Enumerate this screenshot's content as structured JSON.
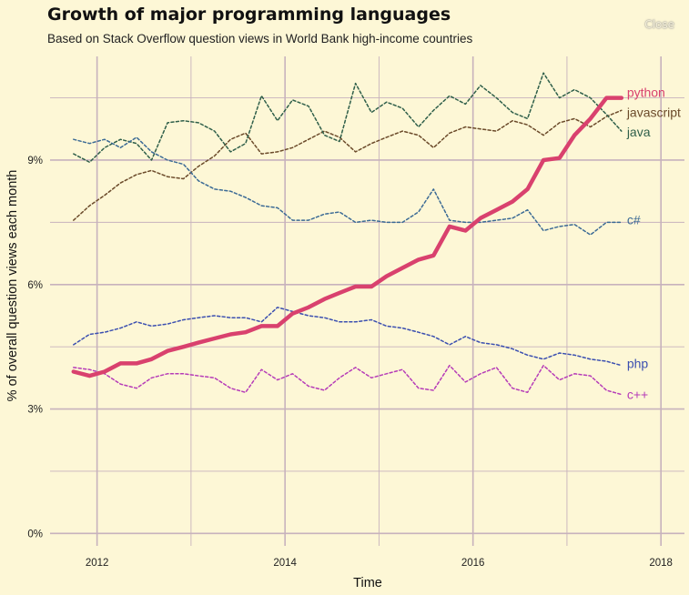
{
  "header": {
    "title": "Growth of major programming languages",
    "subtitle": "Based on Stack Overflow question views in World Bank high-income countries",
    "close_label": "Close"
  },
  "chart_data": {
    "type": "line",
    "xlabel": "Time",
    "ylabel": "% of overall question views each month",
    "xlim": [
      2011.5,
      2018.25
    ],
    "ylim": [
      -0.3,
      11.5
    ],
    "x_ticks": [
      2012,
      2014,
      2016,
      2018
    ],
    "x_tick_labels": [
      "2012",
      "2014",
      "2016",
      "2018"
    ],
    "y_ticks": [
      0,
      3,
      6,
      9
    ],
    "y_tick_labels": [
      "0%",
      "3%",
      "6%",
      "9%"
    ],
    "grid": true,
    "legend": "direct labels at line ends",
    "series": [
      {
        "name": "python",
        "color": "#d9416e",
        "style": "solid",
        "x": [
          2011.75,
          2011.92,
          2012.08,
          2012.25,
          2012.42,
          2012.58,
          2012.75,
          2012.92,
          2013.08,
          2013.25,
          2013.42,
          2013.58,
          2013.75,
          2013.92,
          2014.08,
          2014.25,
          2014.42,
          2014.58,
          2014.75,
          2014.92,
          2015.08,
          2015.25,
          2015.42,
          2015.58,
          2015.75,
          2015.92,
          2016.08,
          2016.25,
          2016.42,
          2016.58,
          2016.75,
          2016.92,
          2017.08,
          2017.25,
          2017.42,
          2017.58
        ],
        "values": [
          3.9,
          3.8,
          3.9,
          4.1,
          4.1,
          4.2,
          4.4,
          4.5,
          4.6,
          4.7,
          4.8,
          4.85,
          5.0,
          5.0,
          5.3,
          5.45,
          5.65,
          5.8,
          5.95,
          5.95,
          6.2,
          6.4,
          6.6,
          6.7,
          7.4,
          7.3,
          7.6,
          7.8,
          8.0,
          8.3,
          9.0,
          9.05,
          9.6,
          10.0,
          10.5,
          10.5
        ]
      },
      {
        "name": "javascript",
        "color": "#6b4a2a",
        "style": "dashed",
        "x": [
          2011.75,
          2011.92,
          2012.08,
          2012.25,
          2012.42,
          2012.58,
          2012.75,
          2012.92,
          2013.08,
          2013.25,
          2013.42,
          2013.58,
          2013.75,
          2013.92,
          2014.08,
          2014.25,
          2014.42,
          2014.58,
          2014.75,
          2014.92,
          2015.08,
          2015.25,
          2015.42,
          2015.58,
          2015.75,
          2015.92,
          2016.08,
          2016.25,
          2016.42,
          2016.58,
          2016.75,
          2016.92,
          2017.08,
          2017.25,
          2017.42,
          2017.58
        ],
        "values": [
          7.55,
          7.9,
          8.15,
          8.45,
          8.65,
          8.75,
          8.6,
          8.55,
          8.85,
          9.1,
          9.5,
          9.65,
          9.15,
          9.2,
          9.3,
          9.5,
          9.7,
          9.55,
          9.2,
          9.4,
          9.55,
          9.7,
          9.6,
          9.3,
          9.65,
          9.8,
          9.75,
          9.7,
          9.95,
          9.85,
          9.6,
          9.9,
          10.0,
          9.8,
          10.05,
          10.2
        ]
      },
      {
        "name": "java",
        "color": "#2f5f4a",
        "style": "dashed",
        "x": [
          2011.75,
          2011.92,
          2012.08,
          2012.25,
          2012.42,
          2012.58,
          2012.75,
          2012.92,
          2013.08,
          2013.25,
          2013.42,
          2013.58,
          2013.75,
          2013.92,
          2014.08,
          2014.25,
          2014.42,
          2014.58,
          2014.75,
          2014.92,
          2015.08,
          2015.25,
          2015.42,
          2015.58,
          2015.75,
          2015.92,
          2016.08,
          2016.25,
          2016.42,
          2016.58,
          2016.75,
          2016.92,
          2017.08,
          2017.25,
          2017.42,
          2017.58
        ],
        "values": [
          9.15,
          8.95,
          9.3,
          9.5,
          9.4,
          9.0,
          9.9,
          9.95,
          9.9,
          9.7,
          9.2,
          9.4,
          10.55,
          9.95,
          10.45,
          10.3,
          9.6,
          9.45,
          10.85,
          10.15,
          10.4,
          10.25,
          9.8,
          10.2,
          10.55,
          10.35,
          10.8,
          10.5,
          10.15,
          10.0,
          11.1,
          10.5,
          10.7,
          10.5,
          10.1,
          9.7
        ]
      },
      {
        "name": "c#",
        "color": "#3b6a95",
        "style": "dashed",
        "x": [
          2011.75,
          2011.92,
          2012.08,
          2012.25,
          2012.42,
          2012.58,
          2012.75,
          2012.92,
          2013.08,
          2013.25,
          2013.42,
          2013.58,
          2013.75,
          2013.92,
          2014.08,
          2014.25,
          2014.42,
          2014.58,
          2014.75,
          2014.92,
          2015.08,
          2015.25,
          2015.42,
          2015.58,
          2015.75,
          2015.92,
          2016.08,
          2016.25,
          2016.42,
          2016.58,
          2016.75,
          2016.92,
          2017.08,
          2017.25,
          2017.42,
          2017.58
        ],
        "values": [
          9.5,
          9.4,
          9.5,
          9.3,
          9.55,
          9.2,
          9.0,
          8.9,
          8.5,
          8.3,
          8.25,
          8.1,
          7.9,
          7.85,
          7.55,
          7.55,
          7.7,
          7.75,
          7.5,
          7.55,
          7.5,
          7.5,
          7.75,
          8.3,
          7.55,
          7.5,
          7.5,
          7.55,
          7.6,
          7.8,
          7.3,
          7.4,
          7.45,
          7.2,
          7.5,
          7.5
        ]
      },
      {
        "name": "php",
        "color": "#3b4fb0",
        "style": "dashed",
        "x": [
          2011.75,
          2011.92,
          2012.08,
          2012.25,
          2012.42,
          2012.58,
          2012.75,
          2012.92,
          2013.08,
          2013.25,
          2013.42,
          2013.58,
          2013.75,
          2013.92,
          2014.08,
          2014.25,
          2014.42,
          2014.58,
          2014.75,
          2014.92,
          2015.08,
          2015.25,
          2015.42,
          2015.58,
          2015.75,
          2015.92,
          2016.08,
          2016.25,
          2016.42,
          2016.58,
          2016.75,
          2016.92,
          2017.08,
          2017.25,
          2017.42,
          2017.58
        ],
        "values": [
          4.55,
          4.8,
          4.85,
          4.95,
          5.1,
          5.0,
          5.05,
          5.15,
          5.2,
          5.25,
          5.2,
          5.2,
          5.1,
          5.45,
          5.35,
          5.25,
          5.2,
          5.1,
          5.1,
          5.15,
          5.0,
          4.95,
          4.85,
          4.75,
          4.55,
          4.75,
          4.6,
          4.55,
          4.45,
          4.3,
          4.2,
          4.35,
          4.3,
          4.2,
          4.15,
          4.05
        ]
      },
      {
        "name": "c++",
        "color": "#b63cb8",
        "style": "dashed",
        "x": [
          2011.75,
          2011.92,
          2012.08,
          2012.25,
          2012.42,
          2012.58,
          2012.75,
          2012.92,
          2013.08,
          2013.25,
          2013.42,
          2013.58,
          2013.75,
          2013.92,
          2014.08,
          2014.25,
          2014.42,
          2014.58,
          2014.75,
          2014.92,
          2015.08,
          2015.25,
          2015.42,
          2015.58,
          2015.75,
          2015.92,
          2016.08,
          2016.25,
          2016.42,
          2016.58,
          2016.75,
          2016.92,
          2017.08,
          2017.25,
          2017.42,
          2017.58
        ],
        "values": [
          4.0,
          3.95,
          3.85,
          3.6,
          3.5,
          3.75,
          3.85,
          3.85,
          3.8,
          3.75,
          3.5,
          3.4,
          3.95,
          3.7,
          3.85,
          3.55,
          3.45,
          3.75,
          4.0,
          3.75,
          3.85,
          3.95,
          3.5,
          3.45,
          4.05,
          3.65,
          3.85,
          4.0,
          3.5,
          3.4,
          4.05,
          3.7,
          3.85,
          3.8,
          3.45,
          3.35
        ]
      }
    ]
  }
}
